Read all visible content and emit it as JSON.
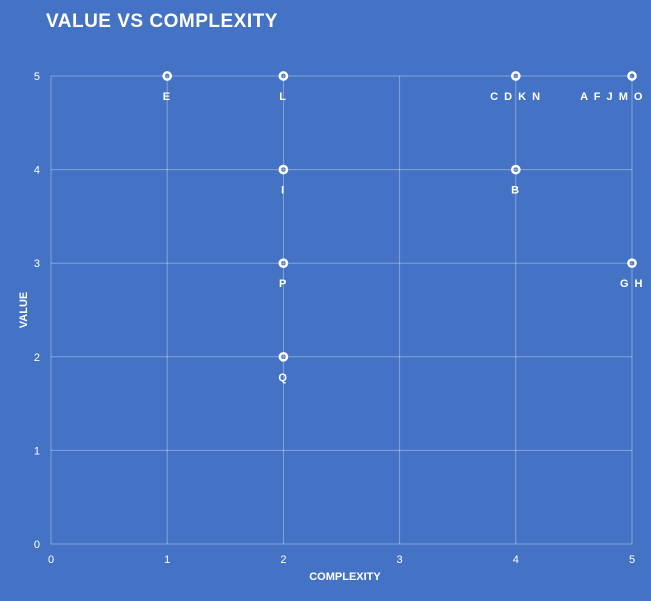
{
  "chart_data": {
    "type": "scatter",
    "title": "VALUE VS COMPLEXITY",
    "xlabel": "COMPLEXITY",
    "ylabel": "VALUE",
    "xlim": [
      0,
      5
    ],
    "ylim": [
      0,
      5
    ],
    "x_ticks": [
      "0",
      "1",
      "2",
      "3",
      "4",
      "5"
    ],
    "y_ticks": [
      "0",
      "1",
      "2",
      "3",
      "4",
      "5"
    ],
    "grid": true,
    "points": [
      {
        "x": 1,
        "y": 5,
        "label": "E"
      },
      {
        "x": 2,
        "y": 5,
        "label": "L"
      },
      {
        "x": 4,
        "y": 5,
        "label": "C D K N"
      },
      {
        "x": 5,
        "y": 5,
        "label": "A F J M O"
      },
      {
        "x": 2,
        "y": 4,
        "label": "I"
      },
      {
        "x": 4,
        "y": 4,
        "label": "B"
      },
      {
        "x": 2,
        "y": 3,
        "label": "P"
      },
      {
        "x": 5,
        "y": 3,
        "label": "G H"
      },
      {
        "x": 2,
        "y": 2,
        "label": "Q"
      }
    ]
  },
  "colors": {
    "background": "#4472C4",
    "foreground": "#FFFFFF"
  }
}
